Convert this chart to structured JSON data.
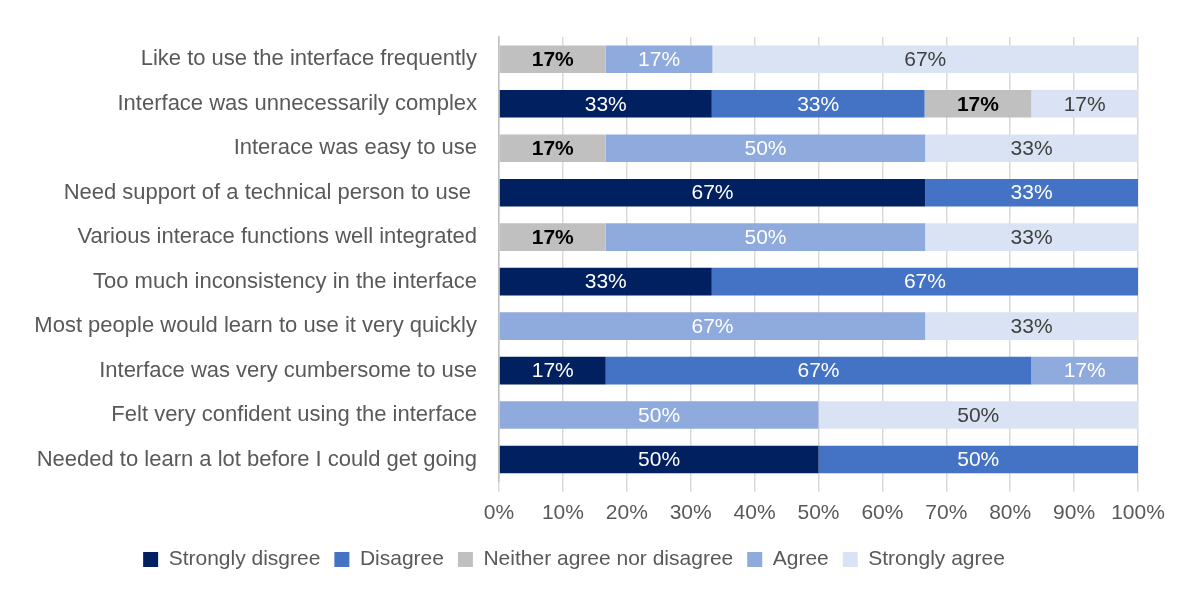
{
  "chart_data": {
    "type": "bar",
    "orientation": "horizontal",
    "stacked": true,
    "categories": [
      "Like to use the interface frequently",
      "Interface was unnecessarily complex",
      "Interace was easy to use",
      "Need support of a technical person to use ",
      "Various interace functions well integrated",
      "Too much inconsistency in the interface",
      "Most people would learn to use it very quickly",
      "Interface was very cumbersome to use",
      "Felt very confident using the interface",
      "Needed to learn a lot before I could get going"
    ],
    "series": [
      {
        "name": "Strongly disgree",
        "color": "#002060",
        "values": [
          null,
          33.3,
          null,
          66.7,
          null,
          33.3,
          null,
          16.7,
          null,
          50
        ],
        "value_labels": [
          null,
          "33%",
          null,
          "67%",
          null,
          "33%",
          null,
          "17%",
          null,
          "50%"
        ]
      },
      {
        "name": "Disagree",
        "color": "#4472c4",
        "values": [
          null,
          33.3,
          null,
          33.3,
          null,
          66.7,
          null,
          66.6,
          null,
          50
        ],
        "value_labels": [
          null,
          "33%",
          null,
          "33%",
          null,
          "67%",
          null,
          "67%",
          null,
          "50%"
        ]
      },
      {
        "name": "Neither agree nor disagree",
        "color": "#c0c0c0",
        "values": [
          16.7,
          16.7,
          16.7,
          null,
          16.7,
          null,
          null,
          null,
          null,
          null
        ],
        "value_labels": [
          "17%",
          "17%",
          "17%",
          null,
          "17%",
          null,
          null,
          null,
          null,
          null
        ]
      },
      {
        "name": "Agree",
        "color": "#8faadc",
        "values": [
          16.7,
          null,
          50,
          null,
          50,
          null,
          66.7,
          16.7,
          50,
          null
        ],
        "value_labels": [
          "17%",
          null,
          "50%",
          null,
          "50%",
          null,
          "67%",
          "17%",
          "50%",
          null
        ]
      },
      {
        "name": "Strongly agree",
        "color": "#dae3f3",
        "values": [
          66.6,
          16.7,
          33.3,
          null,
          33.3,
          null,
          33.3,
          null,
          50,
          null
        ],
        "value_labels": [
          "67%",
          "17%",
          "33%",
          null,
          "33%",
          null,
          "33%",
          null,
          "50%",
          null
        ]
      }
    ],
    "xlim": [
      0,
      100
    ],
    "xticks": [
      {
        "value": 0,
        "label": "0%"
      },
      {
        "value": 10,
        "label": "10%"
      },
      {
        "value": 20,
        "label": "20%"
      },
      {
        "value": 30,
        "label": "30%"
      },
      {
        "value": 40,
        "label": "40%"
      },
      {
        "value": 50,
        "label": "50%"
      },
      {
        "value": 60,
        "label": "60%"
      },
      {
        "value": 70,
        "label": "70%"
      },
      {
        "value": 80,
        "label": "80%"
      },
      {
        "value": 90,
        "label": "90%"
      },
      {
        "value": 100,
        "label": "100%"
      }
    ],
    "grid": "x",
    "legend": "bottom"
  }
}
